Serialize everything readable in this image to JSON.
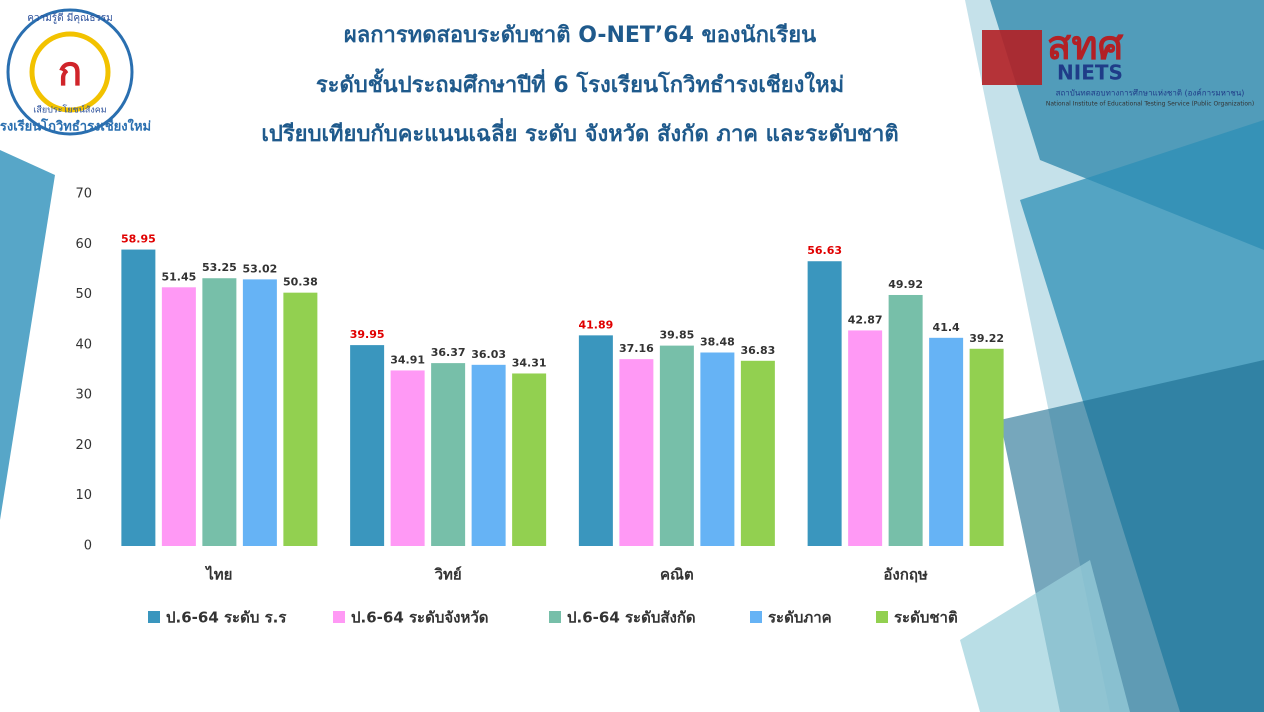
{
  "chart_data": {
    "type": "bar",
    "title": [
      "ผลการทดสอบระดับชาติ O-NET’64 ของนักเรียน",
      "ระดับชั้นประถมศึกษาปีที่ 6 โรงเรียนโกวิทธำรงเชียงใหม่",
      "เปรียบเทียบกับคะแนนเฉลี่ย ระดับ จังหวัด สังกัด ภาค และระดับชาติ"
    ],
    "categories": [
      "ไทย",
      "วิทย์",
      "คณิต",
      "อังกฤษ"
    ],
    "series": [
      {
        "name": "ป.6-64 ระดับ ร.ร",
        "color": "#3a96be",
        "values": [
          58.95,
          39.95,
          41.89,
          56.63
        ]
      },
      {
        "name": "ป.6-64 ระดับจังหวัด",
        "color": "#ff99f5",
        "values": [
          51.45,
          34.91,
          37.16,
          42.87
        ]
      },
      {
        "name": "ป.6-64 ระดับสังกัด",
        "color": "#77bfa9",
        "values": [
          53.25,
          36.37,
          39.85,
          49.92
        ]
      },
      {
        "name": "ระดับภาค",
        "color": "#66b3f5",
        "values": [
          53.02,
          36.03,
          38.48,
          41.4
        ]
      },
      {
        "name": "ระดับชาติ",
        "color": "#92d050",
        "values": [
          50.38,
          34.31,
          36.83,
          39.22
        ]
      }
    ],
    "ylim": [
      0,
      70
    ],
    "yticks": [
      0,
      10,
      20,
      30,
      40,
      50,
      60,
      70
    ],
    "grid": false,
    "legend": "bottom"
  },
  "logos": {
    "school": [
      "ความรู้ดี มีคุณธรรม",
      "เสียประโยชน์สังคม",
      "โรงเรียนโกวิทธำรงเชียงใหม่"
    ],
    "niets": [
      "สทศ",
      "NIETS",
      "สถาบันทดสอบทางการศึกษาแห่งชาติ (องค์การมหาชน)",
      "National Institute of Educational Testing Service (Public Organization)"
    ]
  }
}
